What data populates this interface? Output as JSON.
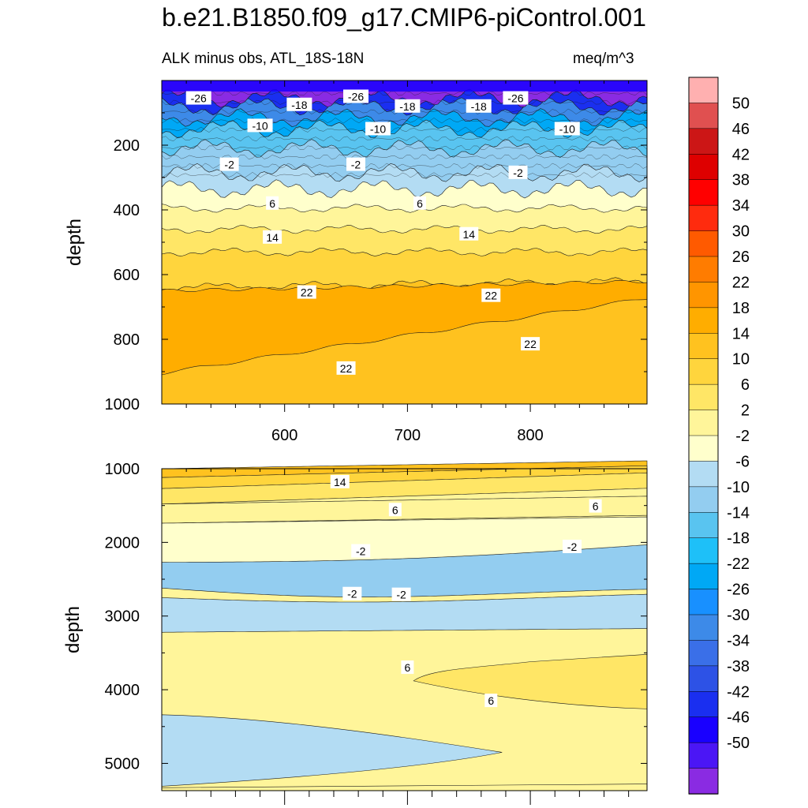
{
  "title": "b.e21.B1850.f09_g17.CMIP6-piControl.001",
  "subtitle_left": "ALK minus obs, ATL_18S-18N",
  "subtitle_right": "meq/m^3",
  "colors": {
    "levels": [
      "#8a2be2",
      "#4b16f5",
      "#1900ff",
      "#1a2ff0",
      "#2d52e6",
      "#3a6fe8",
      "#3d8ae8",
      "#1890ff",
      "#00a8f5",
      "#1ec0f8",
      "#59c4f0",
      "#93cdf0",
      "#b3dcf3",
      "#ffffcc",
      "#fff59a",
      "#ffe666",
      "#ffd53d",
      "#ffc21f",
      "#ffad00",
      "#ff9500",
      "#ff7c00",
      "#ff5a00",
      "#ff2b0e",
      "#ff0000",
      "#de0000",
      "#cc1616",
      "#e05050",
      "#ffb0b0"
    ]
  },
  "chart_data": [
    {
      "type": "contour",
      "panel": "upper",
      "title": "ALK minus obs, ATL_18S-18N",
      "units": "meq/m^3",
      "xlabel": "",
      "ylabel": "depth",
      "xlim": [
        500,
        895
      ],
      "ylim": [
        1000,
        0
      ],
      "xticks": [
        600,
        700,
        800
      ],
      "yticks": [
        200,
        400,
        600,
        800,
        1000
      ],
      "x_tick_labels": [
        "600",
        "700",
        "800"
      ],
      "y_tick_labels": [
        "200",
        "400",
        "600",
        "800",
        "1000"
      ],
      "bands": [
        {
          "level": -50,
          "ybot": 55
        },
        {
          "level": -38,
          "ybot": 80
        },
        {
          "level": -26,
          "ybot": 115
        },
        {
          "level": -18,
          "ybot": 150
        },
        {
          "level": -10,
          "ybot": 210
        },
        {
          "level": -6,
          "ybot": 285
        },
        {
          "level": -2,
          "ybot": 335
        },
        {
          "level": 2,
          "ybot": 395
        },
        {
          "level": 6,
          "ybot": 460
        },
        {
          "level": 10,
          "ybot": 530
        },
        {
          "level": 14,
          "ybot": 640
        },
        {
          "level": 18,
          "ybot": 1000
        }
      ],
      "contour_labels": [
        {
          "text": "-26",
          "x": 530,
          "y": 55
        },
        {
          "text": "-18",
          "x": 612,
          "y": 75
        },
        {
          "text": "-26",
          "x": 658,
          "y": 50
        },
        {
          "text": "-18",
          "x": 700,
          "y": 80
        },
        {
          "text": "-18",
          "x": 758,
          "y": 80
        },
        {
          "text": "-26",
          "x": 788,
          "y": 55
        },
        {
          "text": "-10",
          "x": 580,
          "y": 140
        },
        {
          "text": "-10",
          "x": 676,
          "y": 150
        },
        {
          "text": "-10",
          "x": 830,
          "y": 150
        },
        {
          "text": "-2",
          "x": 555,
          "y": 260
        },
        {
          "text": "-2",
          "x": 658,
          "y": 260
        },
        {
          "text": "-2",
          "x": 790,
          "y": 285
        },
        {
          "text": "6",
          "x": 590,
          "y": 380
        },
        {
          "text": "6",
          "x": 710,
          "y": 380
        },
        {
          "text": "14",
          "x": 590,
          "y": 485
        },
        {
          "text": "14",
          "x": 750,
          "y": 475
        },
        {
          "text": "22",
          "x": 618,
          "y": 655
        },
        {
          "text": "22",
          "x": 768,
          "y": 665
        },
        {
          "text": "22",
          "x": 650,
          "y": 890
        },
        {
          "text": "22",
          "x": 800,
          "y": 815
        }
      ]
    },
    {
      "type": "contour",
      "panel": "lower",
      "xlabel": "",
      "ylabel": "depth",
      "xlim": [
        500,
        895
      ],
      "ylim": [
        5370,
        1000
      ],
      "yticks": [
        1000,
        2000,
        3000,
        4000,
        5000
      ],
      "y_tick_labels": [
        "1000",
        "2000",
        "3000",
        "4000",
        "5000"
      ],
      "contour_labels": [
        {
          "text": "14",
          "x": 645,
          "y": 1180
        },
        {
          "text": "6",
          "x": 690,
          "y": 1560
        },
        {
          "text": "6",
          "x": 853,
          "y": 1510
        },
        {
          "text": "-2",
          "x": 662,
          "y": 2120
        },
        {
          "text": "-2",
          "x": 655,
          "y": 2700
        },
        {
          "text": "-2",
          "x": 834,
          "y": 2060
        },
        {
          "text": "-2",
          "x": 695,
          "y": 2710
        },
        {
          "text": "6",
          "x": 700,
          "y": 3700
        },
        {
          "text": "6",
          "x": 768,
          "y": 4150
        }
      ]
    },
    {
      "type": "colorbar",
      "labels": [
        "50",
        "46",
        "42",
        "38",
        "34",
        "30",
        "26",
        "22",
        "18",
        "14",
        "10",
        "6",
        "2",
        "-2",
        "-6",
        "-10",
        "-14",
        "-18",
        "-22",
        "-26",
        "-30",
        "-34",
        "-38",
        "-42",
        "-46",
        "-50"
      ]
    }
  ]
}
